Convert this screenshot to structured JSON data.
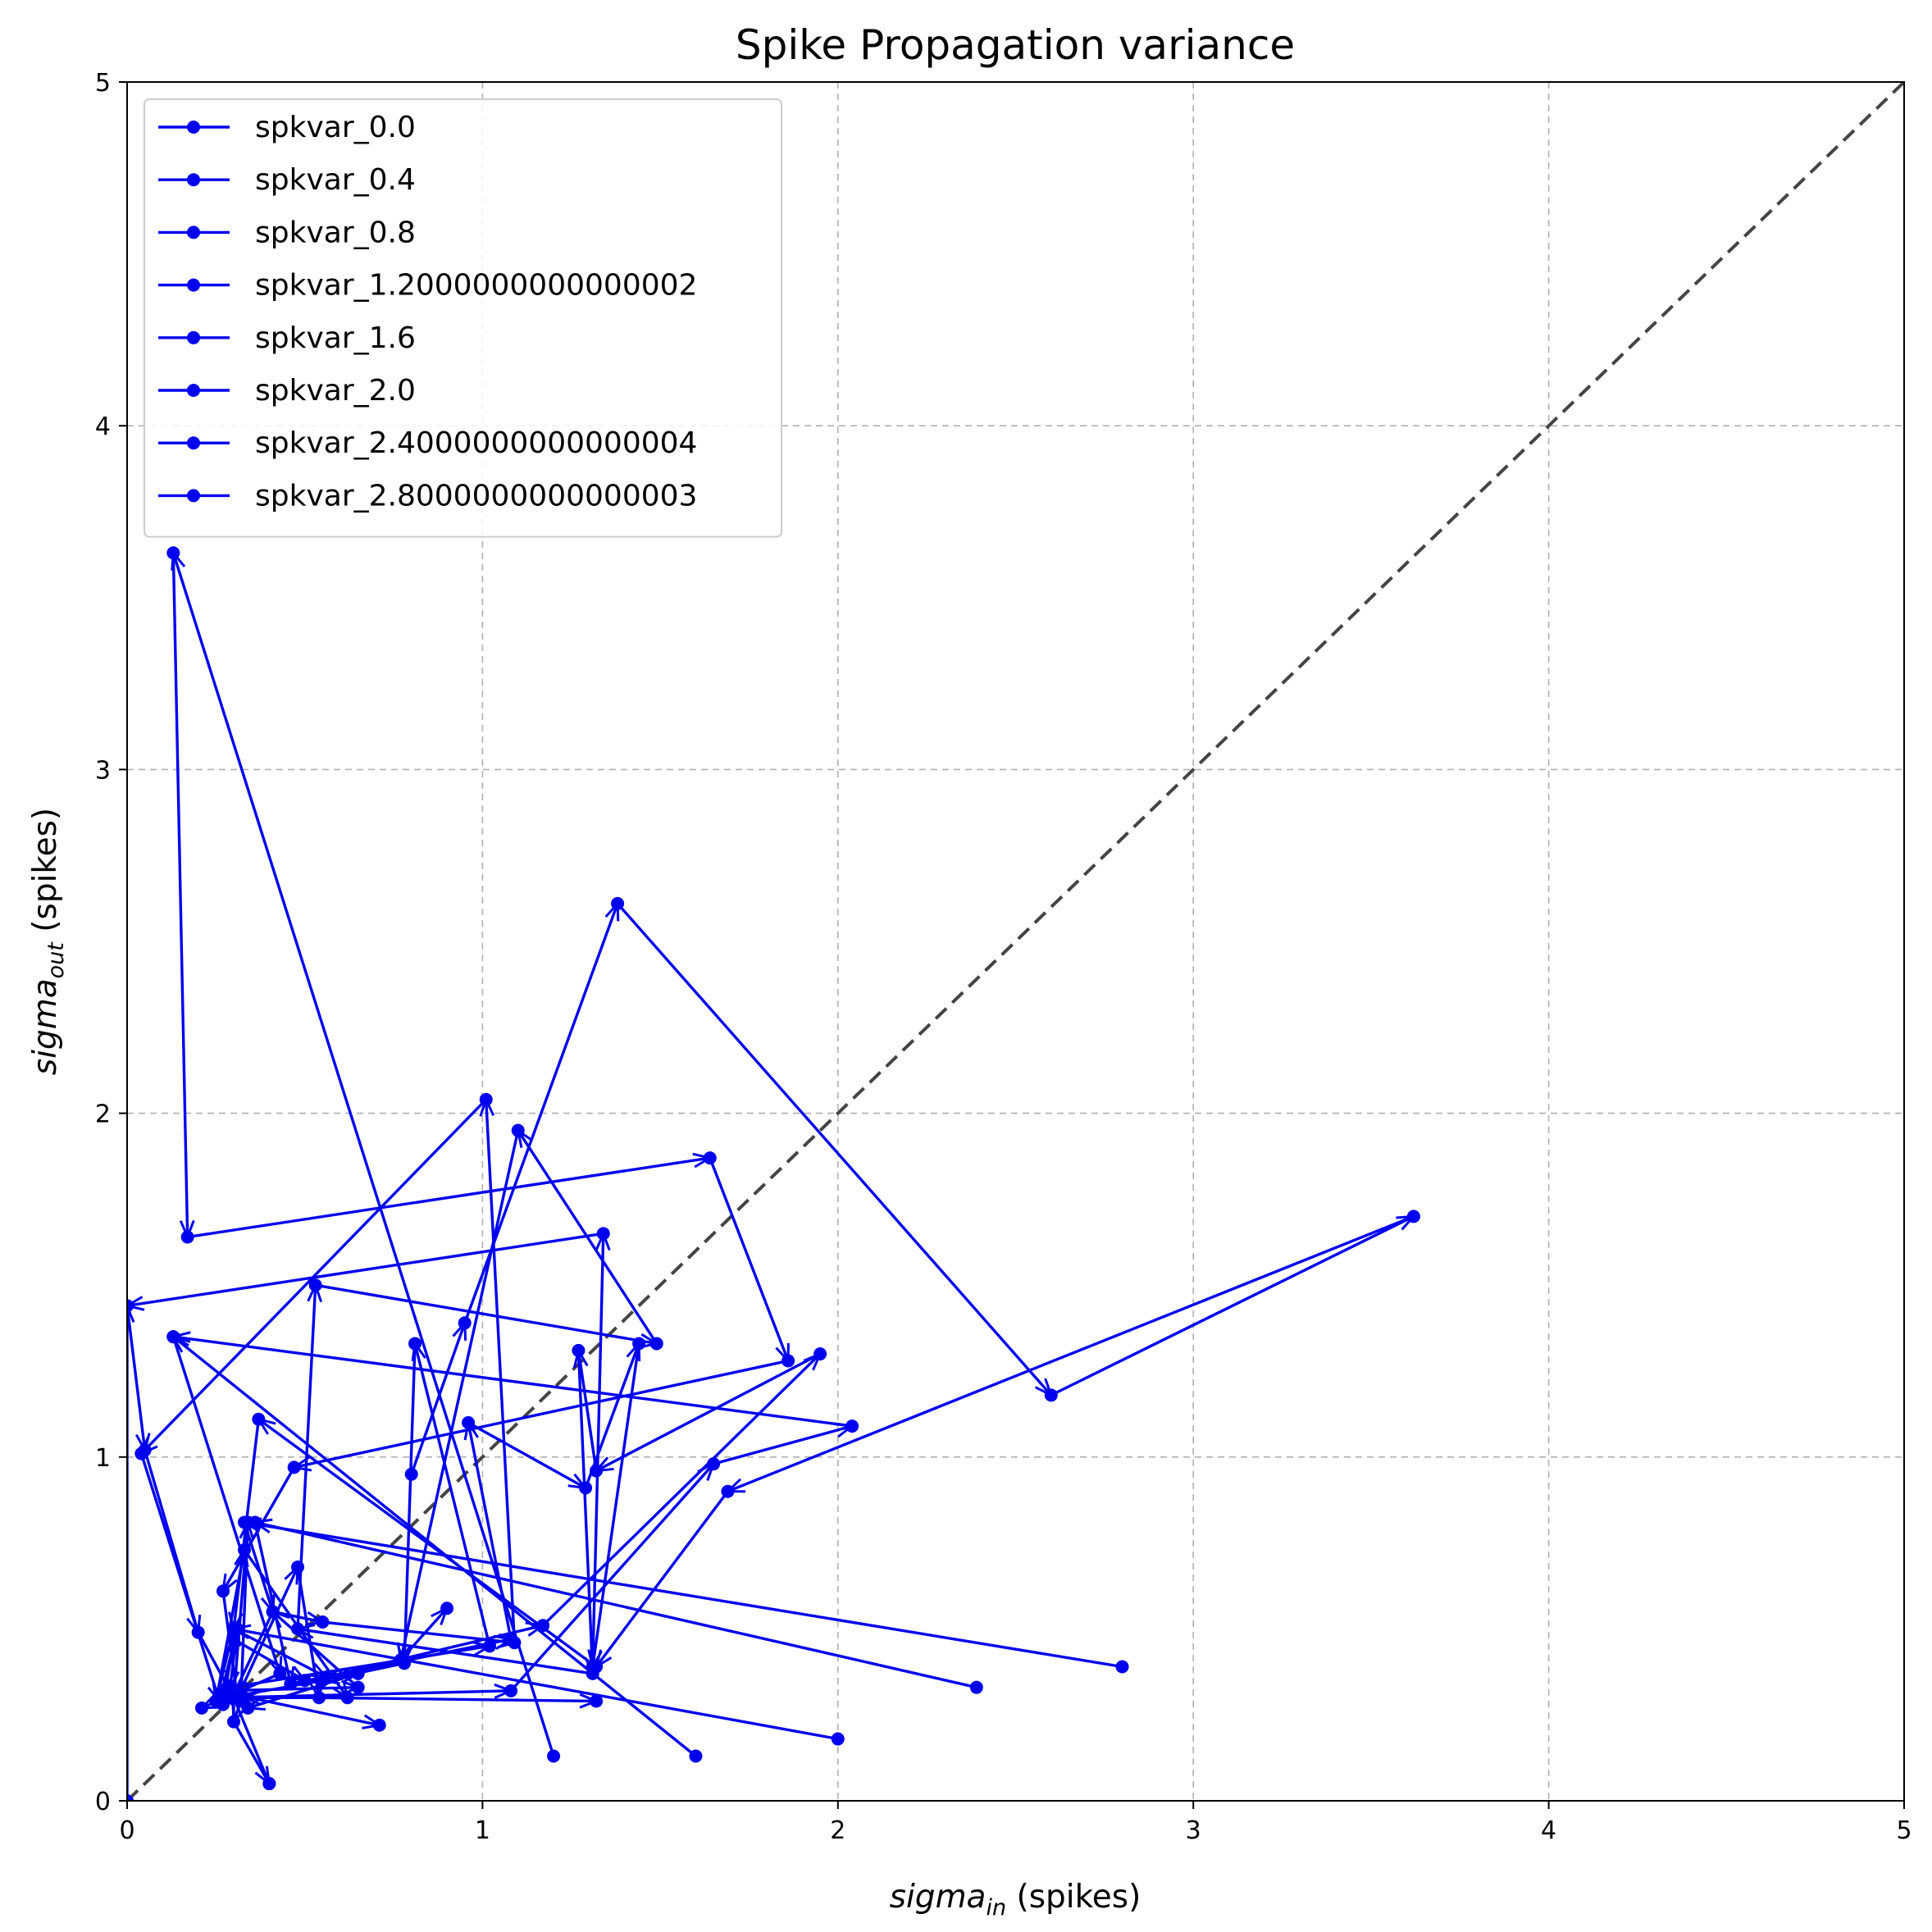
{
  "chart_data": {
    "type": "line",
    "title": "Spike Propagation variance",
    "xlabel": {
      "base": "sigma",
      "sub": "in",
      "suffix": " (spikes)"
    },
    "ylabel": {
      "base": "sigma",
      "sub": "out",
      "suffix": " (spikes)"
    },
    "xlim": [
      0,
      5
    ],
    "ylim": [
      0,
      5
    ],
    "xticks": [
      "0",
      "1",
      "2",
      "3",
      "4",
      "5"
    ],
    "yticks": [
      "0",
      "1",
      "2",
      "3",
      "4",
      "5"
    ],
    "grid": true,
    "legend_position": "top-left",
    "reference_line": {
      "style": "dashed",
      "from": [
        0,
        0
      ],
      "to": [
        5,
        5
      ],
      "color": "#444444"
    },
    "series_color": "#0000ee",
    "series": [
      {
        "name": "spkvar_0.0",
        "x": [
          0.0,
          0.0,
          0.05,
          0.2,
          0.3,
          0.34,
          0.32,
          0.3,
          0.4
        ],
        "y": [
          0.0,
          1.44,
          1.02,
          0.49,
          0.3,
          0.81,
          0.29,
          0.23,
          0.05
        ]
      },
      {
        "name": "spkvar_0.4",
        "x": [
          0.4,
          0.3,
          0.27,
          0.3,
          0.5,
          0.65,
          0.34,
          0.27,
          0.65,
          0.41,
          0.3,
          0.71
        ],
        "y": [
          0.05,
          0.3,
          0.28,
          0.47,
          0.35,
          0.37,
          0.27,
          0.32,
          0.33,
          0.55,
          0.31,
          0.22
        ]
      },
      {
        "name": "spkvar_0.8",
        "x": [
          0.8,
          0.95,
          1.38,
          2.6,
          3.62,
          1.69,
          1.32,
          0.37,
          0.3,
          0.25,
          0.33,
          0.62,
          0.33
        ],
        "y": [
          0.95,
          1.39,
          2.61,
          1.18,
          1.7,
          0.9,
          0.39,
          1.11,
          0.5,
          0.29,
          0.73,
          0.3,
          0.3
        ]
      },
      {
        "name": "spkvar_1.2000000000000002",
        "x": [
          1.2,
          0.13,
          0.17,
          1.64,
          1.86,
          0.47,
          0.27,
          0.31,
          0.48,
          0.54,
          1.32
        ],
        "y": [
          0.13,
          3.63,
          1.64,
          1.87,
          1.28,
          0.97,
          0.61,
          0.3,
          0.68,
          0.3,
          0.29
        ]
      },
      {
        "name": "spkvar_1.6",
        "x": [
          1.6,
          0.13,
          0.43,
          0.21
        ],
        "y": [
          0.13,
          1.35,
          0.37,
          0.27
        ]
      },
      {
        "name": "spkvar_2.0",
        "x": [
          2.0,
          0.3,
          0.56,
          1.17,
          1.95,
          1.32,
          1.27,
          1.31,
          0.48,
          0.53,
          1.49,
          1.1,
          0.77,
          0.9
        ],
        "y": [
          0.18,
          0.5,
          0.36,
          0.51,
          1.3,
          0.96,
          1.31,
          0.37,
          0.5,
          1.5,
          1.33,
          1.95,
          0.41,
          0.56
        ]
      },
      {
        "name": "spkvar_2.4000000000000004",
        "x": [
          2.39,
          0.36,
          0.46,
          1.08,
          0.96,
          1.29,
          1.44,
          1.31,
          1.34,
          0.0
        ],
        "y": [
          0.33,
          0.81,
          0.34,
          0.47,
          1.1,
          0.91,
          1.33,
          0.39,
          1.65,
          1.44
        ]
      },
      {
        "name": "spkvar_2.8000000000000003",
        "x": [
          2.8,
          0.33,
          0.41,
          0.55,
          1.09,
          1.01,
          0.04,
          0.26,
          0.31,
          0.29,
          1.02,
          0.81,
          0.78,
          0.55,
          0.28,
          1.08,
          1.65,
          2.04,
          0.13
        ],
        "y": [
          0.39,
          0.81,
          0.55,
          0.52,
          0.46,
          2.04,
          1.01,
          0.29,
          0.5,
          0.33,
          0.45,
          1.33,
          0.4,
          0.35,
          0.3,
          0.32,
          0.98,
          1.09,
          1.35
        ]
      }
    ]
  }
}
